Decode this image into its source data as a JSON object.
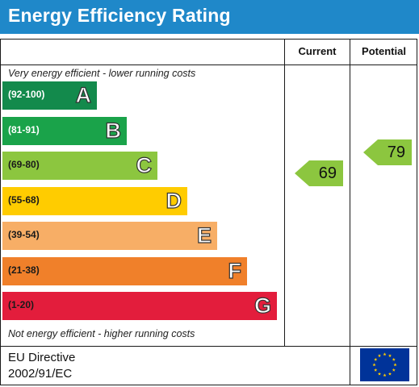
{
  "title": "Energy Efficiency Rating",
  "columns": {
    "current": "Current",
    "potential": "Potential"
  },
  "top_caption": "Very energy efficient - lower running costs",
  "bottom_caption": "Not energy efficient - higher running costs",
  "bands": [
    {
      "range": "(92-100)",
      "letter": "A",
      "color": "#138a4c",
      "text_color": "#ffffff"
    },
    {
      "range": "(81-91)",
      "letter": "B",
      "color": "#1aa34a",
      "text_color": "#ffffff"
    },
    {
      "range": "(69-80)",
      "letter": "C",
      "color": "#8cc63f",
      "text_color": "#1a1a1a"
    },
    {
      "range": "(55-68)",
      "letter": "D",
      "color": "#ffcc00",
      "text_color": "#1a1a1a"
    },
    {
      "range": "(39-54)",
      "letter": "E",
      "color": "#f7ae66",
      "text_color": "#1a1a1a"
    },
    {
      "range": "(21-38)",
      "letter": "F",
      "color": "#f0802a",
      "text_color": "#1a1a1a"
    },
    {
      "range": "(1-20)",
      "letter": "G",
      "color": "#e31d3c",
      "text_color": "#1a1a1a"
    }
  ],
  "current": {
    "value": "69",
    "band": "C",
    "color": "#8cc63f"
  },
  "potential": {
    "value": "79",
    "band": "C",
    "color": "#8cc63f"
  },
  "footer": {
    "line1": "EU Directive",
    "line2": "2002/91/EC"
  },
  "header_color": "#1f88c9"
}
